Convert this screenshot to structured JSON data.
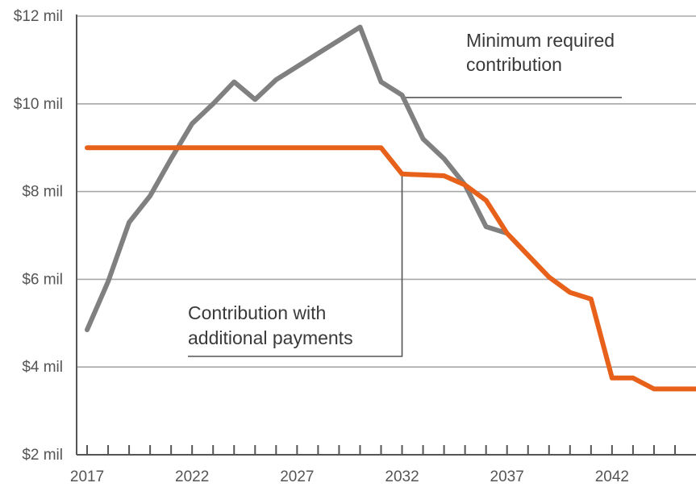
{
  "chart_data": {
    "type": "line",
    "title": "",
    "xlabel": "",
    "ylabel": "",
    "xlim": [
      2016.5,
      2046
    ],
    "ylim": [
      2,
      12
    ],
    "y_ticks": [
      {
        "value": 2,
        "label": "$2 mil"
      },
      {
        "value": 4,
        "label": "$4 mil"
      },
      {
        "value": 6,
        "label": "$6 mil"
      },
      {
        "value": 8,
        "label": "$8 mil"
      },
      {
        "value": 10,
        "label": "$10 mil"
      },
      {
        "value": 12,
        "label": "$12 mil"
      }
    ],
    "x_tick_labels": [
      "2017",
      "2022",
      "2027",
      "2032",
      "2037",
      "2042"
    ],
    "x_tick_values": [
      2017,
      2022,
      2027,
      2032,
      2037,
      2042
    ],
    "minor_ticks": [
      2017,
      2018,
      2019,
      2020,
      2021,
      2022,
      2023,
      2024,
      2025,
      2026,
      2027,
      2028,
      2029,
      2030,
      2031,
      2032,
      2033,
      2034,
      2035,
      2036,
      2037,
      2038,
      2039,
      2040,
      2041,
      2042,
      2043,
      2044,
      2045
    ],
    "grid": true,
    "series": [
      {
        "name": "Minimum required contribution",
        "color": "#808080",
        "x": [
          2017,
          2018,
          2019,
          2020,
          2021,
          2022,
          2023,
          2024,
          2025,
          2026,
          2027,
          2028,
          2029,
          2030,
          2031,
          2032,
          2033,
          2034,
          2035,
          2036,
          2037
        ],
        "y": [
          4.85,
          5.95,
          7.3,
          7.9,
          8.75,
          9.55,
          10.0,
          10.5,
          10.1,
          10.55,
          10.85,
          11.15,
          11.45,
          11.75,
          10.5,
          10.2,
          9.2,
          8.75,
          8.15,
          7.2,
          7.05
        ]
      },
      {
        "name": "Contribution with additional payments",
        "color": "#e8611a",
        "x": [
          2017,
          2018,
          2019,
          2020,
          2021,
          2022,
          2023,
          2024,
          2025,
          2026,
          2027,
          2028,
          2029,
          2030,
          2031,
          2032,
          2033,
          2034,
          2035,
          2036,
          2037,
          2038,
          2039,
          2040,
          2041,
          2042,
          2043,
          2044,
          2045,
          2046
        ],
        "y": [
          9.0,
          9.0,
          9.0,
          9.0,
          9.0,
          9.0,
          9.0,
          9.0,
          9.0,
          9.0,
          9.0,
          9.0,
          9.0,
          9.0,
          9.0,
          8.4,
          8.38,
          8.36,
          8.15,
          7.8,
          7.05,
          6.55,
          6.05,
          5.7,
          5.55,
          3.75,
          3.75,
          3.5,
          3.5,
          3.5
        ]
      }
    ],
    "annotations": [
      {
        "lines": [
          "Minimum required",
          "contribution"
        ],
        "series": 0
      },
      {
        "lines": [
          "Contribution with",
          "additional payments"
        ],
        "series": 1
      }
    ]
  }
}
